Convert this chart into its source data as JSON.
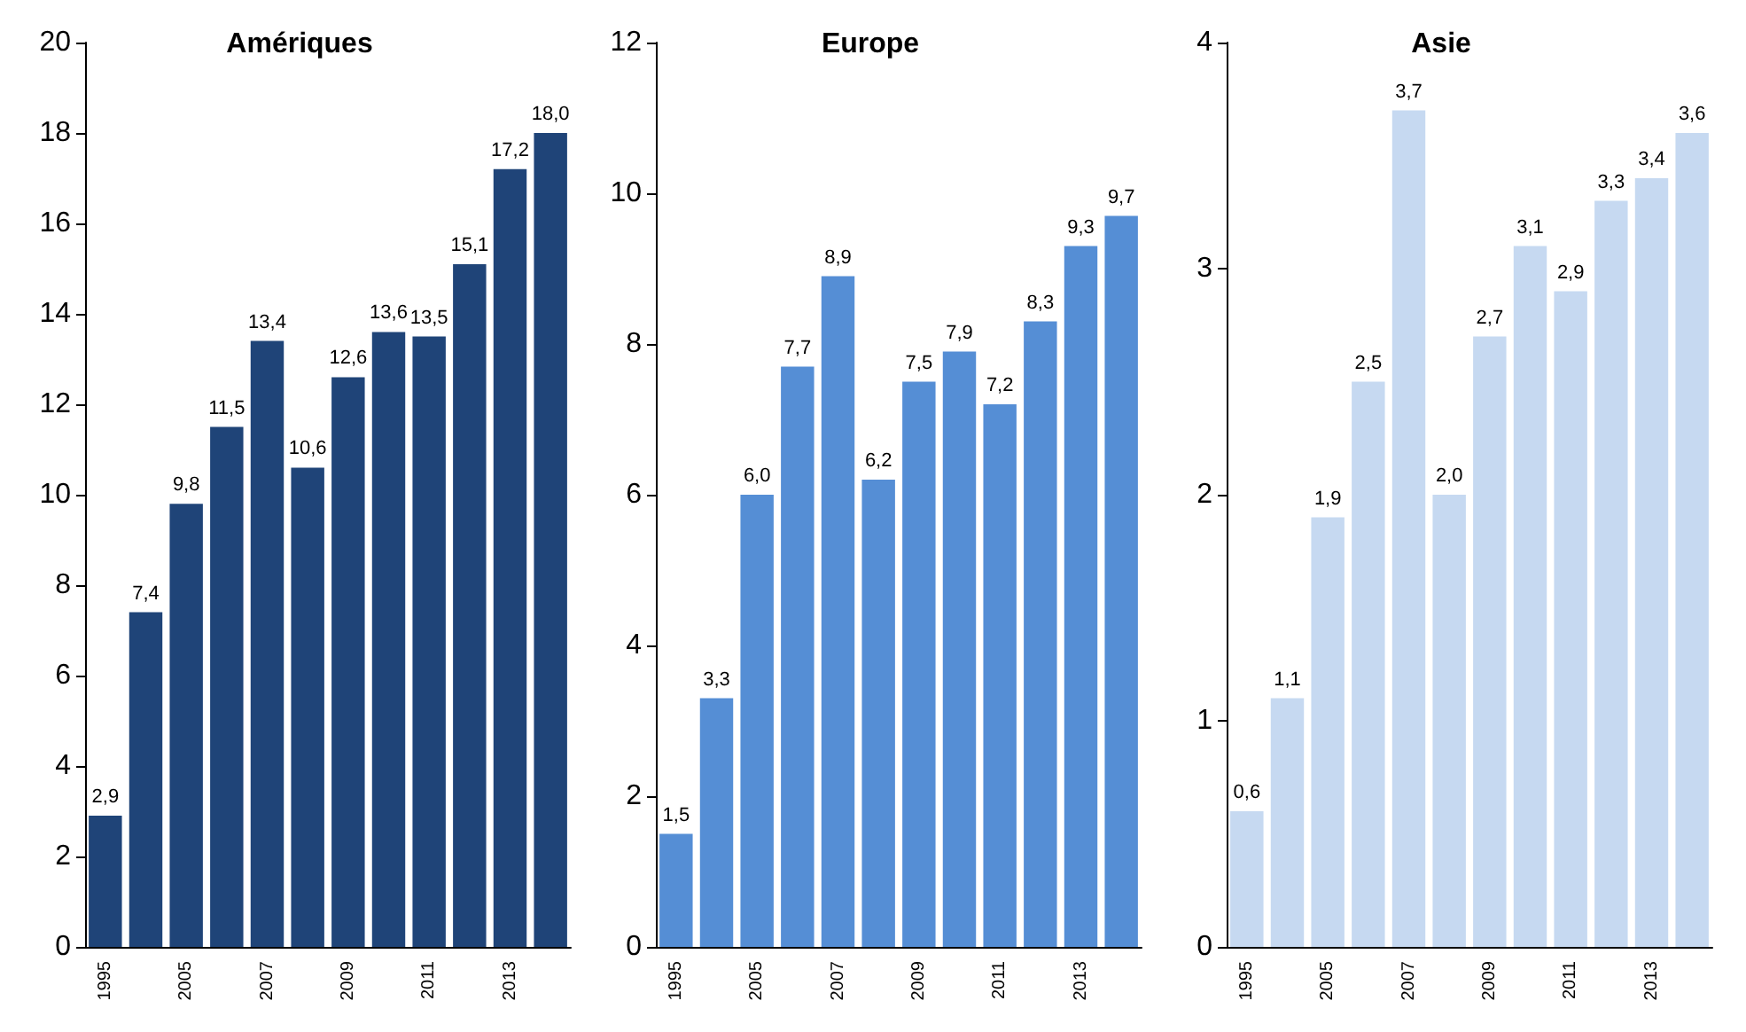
{
  "chart_data": [
    {
      "type": "bar",
      "title": "Amériques",
      "categories": [
        "1995",
        null,
        "2005",
        null,
        "2007",
        null,
        "2009",
        null,
        "2011",
        null,
        "2013",
        null
      ],
      "values": [
        2.9,
        7.4,
        9.8,
        11.5,
        13.4,
        10.6,
        12.6,
        13.6,
        13.5,
        15.1,
        17.2,
        18.0
      ],
      "value_labels": [
        "2,9",
        "7,4",
        "9,8",
        "11,5",
        "13,4",
        "10,6",
        "12,6",
        "13,6",
        "13,5",
        "15,1",
        "17,2",
        "18,0"
      ],
      "color": "#1f4478",
      "ylim": [
        0,
        20
      ],
      "yticks": [
        0,
        2,
        4,
        6,
        8,
        10,
        12,
        14,
        16,
        18,
        20
      ]
    },
    {
      "type": "bar",
      "title": "Europe",
      "categories": [
        "1995",
        null,
        "2005",
        null,
        "2007",
        null,
        "2009",
        null,
        "2011",
        null,
        "2013",
        null
      ],
      "values": [
        1.5,
        3.3,
        6.0,
        7.7,
        8.9,
        6.2,
        7.5,
        7.9,
        7.2,
        8.3,
        9.3,
        9.7
      ],
      "value_labels": [
        "1,5",
        "3,3",
        "6,0",
        "7,7",
        "8,9",
        "6,2",
        "7,5",
        "7,9",
        "7,2",
        "8,3",
        "9,3",
        "9,7"
      ],
      "color": "#558ed5",
      "ylim": [
        0,
        12
      ],
      "yticks": [
        0,
        2,
        4,
        6,
        8,
        10,
        12
      ]
    },
    {
      "type": "bar",
      "title": "Asie",
      "categories": [
        "1995",
        null,
        "2005",
        null,
        "2007",
        null,
        "2009",
        null,
        "2011",
        null,
        "2013",
        null
      ],
      "values": [
        0.6,
        1.1,
        1.9,
        2.5,
        3.7,
        2.0,
        2.7,
        3.1,
        2.9,
        3.3,
        3.4,
        3.6
      ],
      "value_labels": [
        "0,6",
        "1,1",
        "1,9",
        "2,5",
        "3,7",
        "2,0",
        "2,7",
        "3,1",
        "2,9",
        "3,3",
        "3,4",
        "3,6"
      ],
      "color": "#c6d9f1",
      "ylim": [
        0,
        4
      ],
      "yticks": [
        0,
        1,
        2,
        3,
        4
      ]
    }
  ]
}
